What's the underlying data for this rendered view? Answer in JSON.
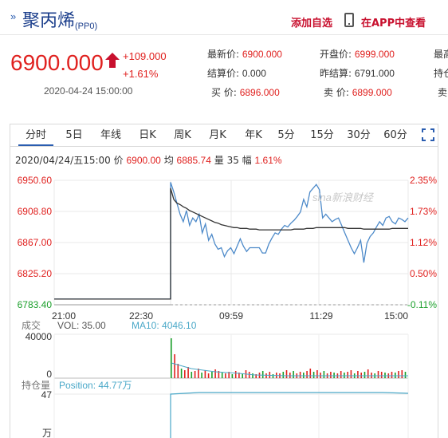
{
  "header": {
    "title": "聚丙烯",
    "code": "(PP0)",
    "add_watchlist": "添加自选",
    "open_app": "在APP中查看"
  },
  "quote": {
    "price": "6900.000",
    "change": "+109.000",
    "change_pct": "+1.61%",
    "datetime": "2020-04-24 15:00:00",
    "fields": [
      {
        "label": "最新价: ",
        "value": "6900.000"
      },
      {
        "label": "开盘价: ",
        "value": "6999.000"
      },
      {
        "label": "最高",
        "value": ""
      },
      {
        "label": "结算价: ",
        "value": "0.000"
      },
      {
        "label": "昨结算: ",
        "value": "6791.000"
      },
      {
        "label": "持仓",
        "value": ""
      },
      {
        "label": "买    价: ",
        "value": "6896.000"
      },
      {
        "label": "卖    价: ",
        "value": "6899.000"
      },
      {
        "label": "卖",
        "value": ""
      }
    ]
  },
  "tabs": [
    "分时",
    "5日",
    "年线",
    "日K",
    "周K",
    "月K",
    "年K",
    "5分",
    "15分",
    "30分",
    "60分"
  ],
  "active_tab": "分时",
  "info_bar": {
    "date": "2020/04/24/五15:00",
    "price_label": "价",
    "price": "6900.00",
    "avg_label": "均",
    "avg": "6885.74",
    "vol_label": "量",
    "vol": "35",
    "amp_label": "幅",
    "amp": "1.61%"
  },
  "colors": {
    "up": "#e0211f",
    "down": "#1a9f2a",
    "price_line": "#4d8ac9",
    "avg_line": "#333333",
    "accent": "#2a5db0"
  },
  "chart_data": {
    "type": "line",
    "title": "",
    "y_left_ticks": [
      "6950.60",
      "6908.80",
      "6867.00",
      "6825.20",
      "6783.40"
    ],
    "y_right_ticks": [
      "2.35%",
      "1.73%",
      "1.12%",
      "0.50%",
      "-0.11%"
    ],
    "x_ticks": [
      "21:00",
      "22:30",
      "09:59",
      "11:29",
      "15:00"
    ],
    "ylim": [
      6783.4,
      6950.6
    ],
    "series": [
      {
        "values": [
          6791,
          6791,
          6791,
          6791,
          6791,
          6948,
          6935,
          6920,
          6905,
          6895,
          6910,
          6890,
          6900,
          6895,
          6905,
          6880,
          6892,
          6870,
          6878,
          6865,
          6858,
          6860,
          6848,
          6856,
          6860,
          6852,
          6862,
          6872,
          6862,
          6855,
          6860,
          6860,
          6860,
          6860,
          6853,
          6853,
          6865,
          6873,
          6880,
          6878,
          6885,
          6890,
          6888,
          6893,
          6897,
          6902,
          6908,
          6925,
          6915,
          6935,
          6940,
          6945,
          6938,
          6900,
          6905,
          6900,
          6895,
          6898,
          6900,
          6890,
          6880,
          6870,
          6860,
          6852,
          6860,
          6870,
          6840,
          6866,
          6875,
          6880,
          6888,
          6895,
          6890,
          6900,
          6902,
          6895,
          6892,
          6900,
          6898,
          6895,
          6900
        ]
      },
      {
        "values": [
          6791,
          6791,
          6791,
          6791,
          6791,
          6940,
          6925,
          6920,
          6918,
          6915,
          6913,
          6910,
          6908,
          6906,
          6904,
          6902,
          6900,
          6898,
          6896,
          6894,
          6893,
          6891,
          6890,
          6889,
          6888,
          6887,
          6887,
          6886,
          6886,
          6886,
          6885,
          6885,
          6885,
          6884,
          6884,
          6884,
          6884,
          6884,
          6884,
          6884,
          6884,
          6884,
          6884,
          6884,
          6885,
          6885,
          6885,
          6885,
          6886,
          6886,
          6886,
          6887,
          6887,
          6887,
          6887,
          6887,
          6887,
          6887,
          6887,
          6887,
          6887,
          6886,
          6886,
          6886,
          6886,
          6886,
          6885,
          6885,
          6885,
          6885,
          6885,
          6885,
          6885,
          6885,
          6885,
          6886,
          6886,
          6886,
          6886,
          6886,
          6886
        ]
      }
    ]
  },
  "volume": {
    "label": "成交",
    "vol_text": "VOL: 35.00",
    "ma_text": "MA10: 4046.10",
    "ticks": [
      "40000",
      "0"
    ]
  },
  "position": {
    "label": "持仓量",
    "text": "Position: 44.77万",
    "ticks": [
      "47",
      "万"
    ]
  },
  "watermark": "sina新浪财经"
}
